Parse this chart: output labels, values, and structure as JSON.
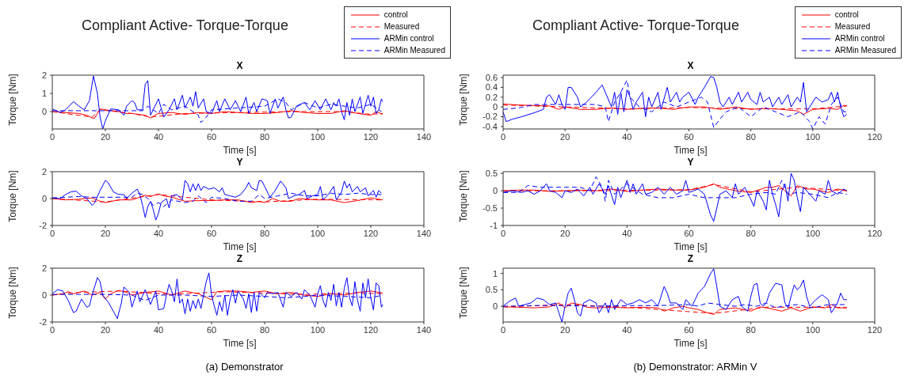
{
  "chart_data": [
    {
      "type": "line",
      "title": "Compliant Active- Torque-Torque",
      "subtitle": "X",
      "xlabel": "Time [s]",
      "ylabel": "Torque [Nm]",
      "xlim": [
        0,
        140
      ],
      "xticks": [
        0,
        20,
        40,
        60,
        80,
        100,
        120,
        140
      ],
      "ylim": [
        -0.95,
        2
      ],
      "yticks": [
        0,
        1,
        2
      ],
      "legend": "top right",
      "series": [
        {
          "name": "control",
          "color": "#ff0000",
          "line_style": "solid",
          "x": [
            0,
            5,
            10,
            13,
            15,
            16,
            18,
            20,
            25,
            28,
            30,
            35,
            37,
            40,
            45,
            50,
            55,
            60,
            65,
            70,
            75,
            80,
            85,
            90,
            95,
            100,
            105,
            110,
            115,
            120,
            122,
            124.5
          ],
          "values": [
            0,
            -0.05,
            -0.1,
            -0.2,
            -0.35,
            -0.35,
            0.15,
            0.1,
            0,
            -0.1,
            -0.1,
            -0.2,
            -0.35,
            -0.1,
            -0.05,
            -0.15,
            -0.05,
            -0.1,
            0,
            -0.05,
            -0.1,
            -0.1,
            -0.05,
            0.05,
            -0.05,
            -0.1,
            -0.1,
            0.05,
            -0.1,
            -0.2,
            0,
            -0.15
          ]
        },
        {
          "name": "Measured",
          "color": "#ff0000",
          "line_style": "dashed",
          "x": [
            0,
            15,
            18,
            30,
            37,
            50,
            70,
            90,
            110,
            120,
            124.5
          ],
          "values": [
            0,
            -0.3,
            0.1,
            -0.1,
            -0.3,
            -0.1,
            -0.05,
            0,
            0,
            -0.15,
            -0.1
          ]
        },
        {
          "name": "ARMin control",
          "color": "#0000ff",
          "line_style": "solid",
          "x": [
            0,
            3,
            5,
            8,
            10,
            12,
            14,
            15.5,
            17,
            18,
            19,
            20,
            22,
            25,
            27,
            28,
            30,
            31,
            32,
            34,
            35,
            36,
            37,
            38,
            40,
            42,
            44,
            46,
            47,
            49,
            50,
            52,
            53,
            54,
            55,
            57,
            58,
            60,
            62,
            63,
            65,
            67,
            69,
            71,
            73,
            74,
            76,
            77,
            79,
            81,
            82,
            84,
            85,
            87,
            88,
            89,
            90,
            92,
            95,
            97,
            99,
            101,
            103,
            105,
            106,
            107,
            108,
            109,
            110,
            111,
            112,
            113,
            114,
            116,
            117,
            119,
            120,
            121,
            122,
            123,
            124,
            124.5
          ],
          "values": [
            0.15,
            -0.05,
            0.1,
            0.55,
            0.3,
            0.1,
            0.6,
            1.95,
            1,
            -0.3,
            -0.95,
            -0.5,
            0.15,
            0.1,
            -0.2,
            0.3,
            0.6,
            0.5,
            0.1,
            0.1,
            1.5,
            1.7,
            -0.2,
            0.1,
            0.7,
            -0.3,
            0.1,
            0.7,
            0.1,
            0.9,
            0.2,
            0.8,
            0.3,
            1.1,
            0.2,
            0.7,
            0,
            -0.1,
            0.6,
            0,
            0.7,
            0.1,
            0.6,
            0,
            0.8,
            -0.1,
            0.5,
            0,
            0.7,
            0.6,
            -0.1,
            0.7,
            0.2,
            0.8,
            0.1,
            -0.35,
            -0.3,
            0.3,
            0.5,
            0.1,
            0.6,
            0.1,
            0.7,
            0.1,
            0.5,
            0.3,
            0.7,
            0,
            -0.45,
            0.5,
            -0.2,
            0.7,
            0,
            0.8,
            -0.1,
            0.9,
            0.3,
            0.8,
            -0.1,
            0.1,
            0.7,
            0.55
          ]
        },
        {
          "name": "ARMin Measured",
          "color": "#0000ff",
          "line_style": "dashed",
          "x": [
            0,
            10,
            30,
            34,
            36,
            38,
            40,
            42,
            45,
            50,
            55,
            56,
            58,
            60,
            70,
            80,
            85,
            88,
            90,
            95,
            100,
            105,
            110,
            115,
            120,
            124
          ],
          "values": [
            0.05,
            0.05,
            0.05,
            0.05,
            0.3,
            0.1,
            -0.1,
            0.4,
            0.1,
            0.3,
            -0.2,
            -0.6,
            -0.3,
            0.1,
            0.2,
            0.3,
            0.7,
            0.5,
            0.1,
            0.5,
            0.2,
            0.4,
            0.3,
            0.2,
            0.4,
            0
          ]
        }
      ]
    },
    {
      "type": "line",
      "subtitle": "Y",
      "xlabel": "Time [s]",
      "ylabel": "Torque [Nm]",
      "xlim": [
        0,
        140
      ],
      "xticks": [
        0,
        20,
        40,
        60,
        80,
        100,
        120,
        140
      ],
      "ylim": [
        -2,
        2
      ],
      "yticks": [
        -2,
        0,
        2
      ],
      "series": [
        {
          "color": "#ff0000",
          "line_style": "solid",
          "x": [
            0,
            5,
            10,
            15,
            18,
            20,
            25,
            30,
            35,
            37,
            40,
            42,
            45,
            50,
            55,
            60,
            65,
            70,
            75,
            78,
            80,
            83,
            86,
            90,
            93,
            100,
            105,
            110,
            115,
            120,
            124.5
          ],
          "values": [
            0,
            -0.1,
            -0.05,
            0.05,
            -0.2,
            -0.3,
            -0.1,
            -0.1,
            0.25,
            0.15,
            0.35,
            0.2,
            0.1,
            -0.2,
            -0.15,
            -0.15,
            -0.1,
            -0.1,
            -0.3,
            -0.2,
            -0.3,
            0,
            -0.2,
            -0.2,
            0,
            -0.1,
            -0.1,
            -0.3,
            -0.15,
            0.05,
            -0.1
          ]
        },
        {
          "color": "#ff0000",
          "line_style": "dashed",
          "x": [
            0,
            20,
            40,
            60,
            80,
            100,
            124.5
          ],
          "values": [
            0,
            -0.25,
            0.3,
            -0.1,
            -0.25,
            -0.05,
            -0.1
          ]
        },
        {
          "color": "#0000ff",
          "line_style": "solid",
          "x": [
            0,
            3,
            5,
            7,
            9,
            11,
            13,
            15,
            16,
            18,
            20,
            21,
            23,
            25,
            27,
            28,
            30,
            32,
            33,
            34,
            35,
            36,
            37,
            38,
            39,
            40,
            41,
            43,
            44,
            45,
            47,
            49,
            50,
            51,
            52,
            53,
            54,
            55,
            56,
            57,
            59,
            61,
            63,
            64,
            65,
            67,
            69,
            71,
            73,
            74,
            75,
            77,
            78,
            79,
            80,
            82,
            84,
            86,
            88,
            89,
            91,
            93,
            95,
            96,
            98,
            100,
            101,
            102,
            104,
            106,
            107,
            109,
            110,
            111,
            112,
            113,
            115,
            116,
            118,
            119,
            121,
            122,
            123,
            124
          ],
          "values": [
            0.05,
            0,
            0.3,
            0.5,
            0.55,
            0.2,
            0,
            -0.5,
            -0.3,
            0.6,
            1.35,
            1.2,
            0.5,
            0.3,
            0.3,
            0,
            0.4,
            0.7,
            0.3,
            -0.5,
            -1.4,
            -0.6,
            -0.2,
            -0.8,
            -1.6,
            -1.1,
            -0.3,
            0,
            -0.7,
            0.2,
            0.3,
            -0.1,
            1.35,
            1.1,
            0.5,
            1.1,
            0.6,
            1.1,
            0.6,
            0.9,
            0.7,
            0.8,
            0.5,
            0.8,
            0.3,
            0.2,
            0.1,
            0.3,
            0.8,
            1.2,
            0.8,
            0.6,
            1.35,
            1.3,
            0.9,
            0.1,
            0.6,
            1.3,
            0.8,
            0,
            0.2,
            0.3,
            0.6,
            0,
            0.2,
            0.3,
            0.9,
            -0.1,
            0.3,
            0.9,
            -0.1,
            0.5,
            1.3,
            0.8,
            1.1,
            0.5,
            0.9,
            0.5,
            0.8,
            0.2,
            0.6,
            0.1,
            0.6,
            0.4
          ]
        },
        {
          "color": "#0000ff",
          "line_style": "dashed",
          "x": [
            0,
            10,
            15,
            20,
            30,
            32,
            34,
            36,
            38,
            40,
            42,
            45,
            50,
            53,
            55,
            58,
            60,
            65,
            70,
            75,
            78,
            80,
            85,
            90,
            95,
            100,
            105,
            110,
            115,
            120,
            124
          ],
          "values": [
            0.05,
            0.15,
            0.1,
            0.1,
            0.1,
            0.4,
            0.3,
            0,
            -0.5,
            -0.3,
            -0.6,
            -0.1,
            -0.3,
            -0.2,
            0.2,
            -0.3,
            0.1,
            0,
            -0.2,
            -0.2,
            0.3,
            0,
            0.2,
            0.4,
            0.2,
            0.2,
            0.4,
            0.3,
            0.4,
            0.3,
            0.3
          ]
        }
      ]
    },
    {
      "type": "line",
      "subtitle": "Z",
      "xlabel": "Time [s]",
      "ylabel": "Torque [Nm]",
      "xlim": [
        0,
        140
      ],
      "xticks": [
        0,
        20,
        40,
        60,
        80,
        100,
        120,
        140
      ],
      "ylim": [
        -2,
        2
      ],
      "yticks": [
        -2,
        0,
        2
      ],
      "annotations": [
        "(a) Demonstrator"
      ],
      "series": [
        {
          "color": "#ff0000",
          "line_style": "solid",
          "x": [
            0,
            4,
            6,
            8,
            12,
            15,
            18,
            20,
            22,
            25,
            28,
            30,
            35,
            40,
            45,
            50,
            55,
            60,
            62,
            65,
            70,
            75,
            80,
            85,
            90,
            95,
            100,
            105,
            110,
            115,
            120,
            124.5
          ],
          "values": [
            0,
            0.1,
            0.25,
            0.1,
            0.3,
            0,
            0.2,
            -0.3,
            0.1,
            0.35,
            0.2,
            0,
            0.2,
            0.3,
            0,
            0.3,
            0.1,
            -0.35,
            0.25,
            0.3,
            0.3,
            0.2,
            0.3,
            0.1,
            0.2,
            0,
            -0.1,
            0.1,
            0,
            0.2,
            0.3,
            0.15
          ]
        },
        {
          "color": "#ff0000",
          "line_style": "dashed",
          "x": [
            0,
            10,
            25,
            45,
            65,
            95,
            115,
            124.5
          ],
          "values": [
            0,
            0.2,
            0.3,
            0.05,
            0.25,
            0.05,
            0.15,
            0.1
          ]
        },
        {
          "color": "#0000ff",
          "line_style": "solid",
          "x": [
            0,
            2,
            4,
            6,
            8,
            9,
            11,
            13,
            14,
            15,
            17,
            18,
            19,
            21,
            23,
            24.5,
            26,
            27,
            29,
            30,
            32,
            33,
            35,
            37,
            39,
            40,
            42,
            43,
            44,
            45,
            46,
            47,
            48,
            49,
            50,
            51,
            52,
            53,
            54,
            55,
            56,
            58,
            59,
            60,
            61,
            62,
            63,
            64,
            65,
            66,
            67,
            68,
            69,
            70,
            72,
            73,
            74,
            75,
            76,
            77,
            78,
            80,
            81,
            83,
            85,
            87,
            88,
            90,
            92,
            94,
            95,
            97,
            99,
            100,
            101,
            102,
            103,
            104,
            105,
            106,
            107,
            108,
            109,
            110,
            111,
            112,
            113,
            114,
            115,
            116,
            117,
            118,
            119,
            120,
            121,
            122,
            123,
            124,
            124.5
          ],
          "values": [
            0.1,
            0.4,
            0.3,
            -0.4,
            -1.3,
            -1.2,
            -0.3,
            -0.9,
            -0.8,
            0,
            1.3,
            1,
            0,
            -0.5,
            -1.2,
            -1.75,
            -0.6,
            0.6,
            0.2,
            -0.9,
            0.3,
            -0.5,
            0.4,
            -0.7,
            0.3,
            -1.1,
            -1,
            0,
            0.8,
            0.3,
            -0.5,
            1.2,
            -0.6,
            -0.3,
            -1.4,
            -0.3,
            -1.2,
            -0.4,
            -1,
            -0.3,
            -1,
            1,
            1.65,
            0,
            -0.8,
            -1.5,
            -0.5,
            -1.2,
            0,
            -1.5,
            -0.3,
            0.4,
            -0.6,
            0.3,
            -0.3,
            -1,
            0.1,
            -1.3,
            0.2,
            -1.2,
            0.2,
            -0.2,
            0.2,
            0.1,
            0.2,
            -0.9,
            0.2,
            -0.1,
            0.2,
            -0.3,
            0.4,
            0,
            -0.9,
            0.1,
            0.7,
            -0.4,
            -0.9,
            0.2,
            -0.4,
            0.8,
            -0.8,
            0.2,
            -0.9,
            0.5,
            1.3,
            -0.2,
            -0.8,
            1,
            -0.4,
            -1.2,
            0.9,
            -0.2,
            1.2,
            -0.2,
            -1.1,
            0.9,
            0.7,
            -0.9,
            -0.7
          ]
        },
        {
          "color": "#0000ff",
          "line_style": "dashed",
          "x": [
            0,
            10,
            20,
            30,
            35,
            40,
            50,
            60,
            70,
            80,
            88,
            95,
            100,
            110,
            120,
            124.5
          ],
          "values": [
            0.05,
            0.05,
            0.05,
            0,
            -0.4,
            0,
            0,
            -0.1,
            0,
            -0.1,
            -0.2,
            -0.1,
            0,
            -0.1,
            -0.2,
            0
          ]
        }
      ]
    },
    {
      "type": "line",
      "title": "Compliant Active- Torque-Torque",
      "subtitle": "X",
      "xlabel": "Time [s]",
      "ylabel": "Torque [Nm]",
      "xlim": [
        0,
        120
      ],
      "xticks": [
        0,
        20,
        40,
        60,
        80,
        100,
        120
      ],
      "ylim": [
        -0.45,
        0.65
      ],
      "yticks": [
        -0.4,
        -0.2,
        0,
        0.2,
        0.4,
        0.6
      ],
      "legend": "top right",
      "series": [
        {
          "name": "control",
          "color": "#ff0000",
          "line_style": "solid",
          "x": [
            0,
            5,
            10,
            15,
            18,
            20,
            25,
            30,
            35,
            40,
            45,
            50,
            55,
            60,
            65,
            70,
            75,
            80,
            85,
            90,
            95,
            97,
            100,
            105,
            108,
            110,
            111
          ],
          "values": [
            0.06,
            0.04,
            0.03,
            0.02,
            -0.05,
            0,
            -0.05,
            -0.05,
            -0.02,
            -0.05,
            -0.03,
            -0.02,
            -0.05,
            0,
            0,
            -0.05,
            0,
            -0.05,
            -0.03,
            -0.05,
            -0.08,
            -0.15,
            -0.05,
            -0.03,
            -0.05,
            0.03,
            0.03
          ]
        },
        {
          "name": "Measured",
          "color": "#ff0000",
          "line_style": "dashed",
          "x": [
            0,
            20,
            40,
            60,
            80,
            100,
            111
          ],
          "values": [
            0.04,
            0,
            -0.04,
            -0.01,
            -0.04,
            -0.04,
            0.02
          ]
        },
        {
          "name": "ARMin control",
          "color": "#0000ff",
          "line_style": "solid",
          "x": [
            0,
            1,
            3,
            6,
            10,
            13,
            14,
            15,
            17,
            18,
            19,
            20,
            21,
            22,
            24,
            25,
            27,
            30,
            32,
            33,
            35,
            36,
            37,
            38,
            39,
            40,
            41,
            42,
            43,
            45,
            46,
            47,
            48,
            50,
            51,
            53,
            54,
            56,
            57,
            58,
            60,
            62,
            63,
            64,
            65,
            67,
            68,
            69,
            70,
            71,
            73,
            74,
            76,
            77,
            79,
            80,
            82,
            83,
            84,
            86,
            87,
            89,
            90,
            92,
            93,
            95,
            96,
            97,
            98,
            99,
            101,
            103,
            105,
            106,
            107,
            108,
            109,
            110,
            111
          ],
          "values": [
            -0.1,
            -0.3,
            -0.25,
            -0.2,
            -0.12,
            -0.05,
            0.2,
            0.25,
            0.05,
            0.25,
            0.05,
            -0.05,
            0.4,
            0.4,
            0.2,
            0,
            0.1,
            0.3,
            0.45,
            0.3,
            0,
            0.3,
            -0.15,
            0.3,
            -0.1,
            0.35,
            0.2,
            -0.05,
            0.1,
            0.3,
            -0.2,
            0.2,
            0,
            0.3,
            -0.05,
            0.4,
            0.1,
            0.3,
            0.1,
            0.2,
            0.3,
            0.05,
            0.2,
            0.3,
            0.4,
            0.62,
            0.6,
            0.4,
            0.1,
            0,
            0.2,
            0.05,
            0.3,
            0.1,
            0.3,
            0.15,
            0.05,
            0.3,
            0.1,
            0.2,
            0,
            0.2,
            0.05,
            0.25,
            0,
            0.2,
            0.1,
            0.5,
            -0.1,
            0,
            0.2,
            0.1,
            0.15,
            0.3,
            0.1,
            0.3,
            0,
            -0.2,
            -0.15
          ]
        },
        {
          "name": "ARMin Measured",
          "color": "#0000ff",
          "line_style": "dashed",
          "x": [
            0,
            5,
            10,
            13,
            20,
            25,
            30,
            33,
            34,
            36,
            38,
            40,
            41,
            44,
            48,
            52,
            56,
            60,
            64,
            66,
            68,
            70,
            72,
            76,
            80,
            84,
            88,
            92,
            96,
            99,
            100,
            102,
            104,
            106,
            108,
            110,
            111
          ],
          "values": [
            -0.05,
            -0.02,
            0.05,
            0.05,
            0.05,
            0.05,
            0.05,
            0,
            -0.3,
            0.1,
            0.3,
            0.55,
            0.2,
            0,
            -0.1,
            0.1,
            0,
            0.1,
            0.2,
            0.1,
            -0.42,
            -0.25,
            -0.1,
            0,
            -0.2,
            0,
            -0.1,
            -0.2,
            -0.1,
            -0.3,
            -0.45,
            -0.2,
            -0.35,
            0.05,
            0.2,
            -0.1,
            -0.1
          ]
        }
      ]
    },
    {
      "type": "line",
      "subtitle": "Y",
      "xlabel": "Time [s]",
      "ylabel": "Torque [Nm]",
      "xlim": [
        0,
        120
      ],
      "xticks": [
        0,
        20,
        40,
        60,
        80,
        100,
        120
      ],
      "ylim": [
        -1,
        0.55
      ],
      "yticks": [
        -1,
        -0.5,
        0,
        0.5
      ],
      "series": [
        {
          "color": "#ff0000",
          "line_style": "solid",
          "x": [
            0,
            5,
            10,
            15,
            20,
            25,
            30,
            35,
            40,
            45,
            50,
            55,
            60,
            65,
            68,
            70,
            75,
            80,
            85,
            87,
            89,
            91,
            93,
            95,
            98,
            100,
            105,
            108,
            111
          ],
          "values": [
            0,
            0.02,
            0.02,
            -0.02,
            0,
            0.02,
            0,
            0.05,
            -0.02,
            0.02,
            0.05,
            0.02,
            0.02,
            0.1,
            0.2,
            0.1,
            0,
            -0.05,
            0.1,
            0.1,
            0.15,
            0,
            -0.15,
            0.15,
            0.05,
            0.05,
            -0.05,
            0.05,
            0
          ]
        },
        {
          "color": "#ff0000",
          "line_style": "dashed",
          "x": [
            0,
            30,
            60,
            68,
            80,
            95,
            111
          ],
          "values": [
            0,
            0,
            0.03,
            0.18,
            -0.03,
            0.1,
            0
          ]
        },
        {
          "color": "#0000ff",
          "line_style": "solid",
          "x": [
            0,
            3,
            6,
            8,
            10,
            12,
            14,
            15,
            17,
            19,
            20,
            22,
            24,
            26,
            28,
            29,
            31,
            33,
            34,
            36,
            37,
            38,
            40,
            41,
            42,
            43,
            45,
            46,
            48,
            50,
            52,
            54,
            56,
            58,
            59,
            60,
            63,
            65,
            66,
            67,
            68,
            69,
            70,
            72,
            74,
            75,
            76,
            78,
            80,
            81,
            82,
            84,
            85,
            86,
            87,
            88,
            89,
            90,
            91,
            92,
            93,
            94,
            95,
            96,
            97,
            99,
            101,
            102,
            104,
            105,
            106,
            108,
            110,
            111
          ],
          "values": [
            -0.05,
            0,
            -0.05,
            0,
            -0.1,
            0,
            0.2,
            0,
            -0.05,
            -0.2,
            0,
            -0.05,
            0.05,
            -0.15,
            0.1,
            -0.1,
            0.2,
            -0.1,
            0.15,
            -0.4,
            0.1,
            -0.2,
            0.3,
            -0.05,
            0.2,
            -0.1,
            0.2,
            -0.1,
            -0.05,
            0.1,
            -0.1,
            0.1,
            -0.1,
            0,
            0.3,
            -0.05,
            0.05,
            -0.1,
            -0.4,
            -0.7,
            -0.88,
            -0.5,
            -0.1,
            0,
            -0.2,
            0.2,
            -0.1,
            0.1,
            -0.25,
            -0.45,
            0,
            -0.3,
            -0.55,
            0.3,
            -0.1,
            -0.4,
            -0.75,
            0,
            0.2,
            -0.3,
            0.5,
            0.3,
            -0.2,
            -0.6,
            0.1,
            -0.1,
            -0.3,
            0,
            -0.1,
            0.3,
            0,
            -0.1,
            0.05,
            0
          ]
        },
        {
          "color": "#0000ff",
          "line_style": "dashed",
          "x": [
            0,
            5,
            8,
            12,
            20,
            25,
            28,
            30,
            32,
            33,
            34,
            36,
            40,
            45,
            50,
            55,
            60,
            65,
            70,
            75,
            80,
            85,
            88,
            90,
            92,
            95,
            100,
            105,
            108,
            111
          ],
          "values": [
            -0.05,
            -0.05,
            0.15,
            0.1,
            0.1,
            0.1,
            0,
            0.4,
            0.1,
            -0.3,
            0.3,
            -0.1,
            0.2,
            -0.1,
            -0.2,
            -0.2,
            -0.1,
            -0.2,
            -0.2,
            -0.2,
            -0.1,
            -0.05,
            -0.1,
            0.3,
            -0.1,
            -0.05,
            -0.1,
            -0.2,
            -0.05,
            -0.1
          ]
        }
      ]
    },
    {
      "type": "line",
      "subtitle": "Z",
      "xlabel": "Time [s]",
      "ylabel": "Torque [Nm]",
      "xlim": [
        0,
        120
      ],
      "xticks": [
        0,
        20,
        40,
        60,
        80,
        100,
        120
      ],
      "ylim": [
        -0.48,
        1.16
      ],
      "yticks": [
        0,
        0.5,
        1
      ],
      "annotations": [
        "(b) Demonstrator: ARMin V"
      ],
      "series": [
        {
          "color": "#ff0000",
          "line_style": "solid",
          "x": [
            0,
            5,
            10,
            15,
            18,
            20,
            22,
            25,
            27,
            30,
            35,
            40,
            45,
            50,
            52,
            55,
            58,
            60,
            63,
            66,
            68,
            70,
            75,
            80,
            83,
            85,
            90,
            93,
            96,
            100,
            104,
            106,
            108,
            111
          ],
          "values": [
            -0.02,
            -0.03,
            -0.05,
            -0.02,
            0.1,
            -0.05,
            0.1,
            0.05,
            -0.03,
            -0.05,
            -0.03,
            -0.05,
            -0.03,
            -0.05,
            -0.15,
            -0.05,
            0,
            -0.05,
            -0.1,
            -0.2,
            -0.25,
            -0.1,
            -0.05,
            -0.15,
            -0.02,
            -0.05,
            -0.15,
            -0.05,
            -0.15,
            -0.02,
            -0.05,
            0.05,
            -0.05,
            -0.05
          ]
        },
        {
          "color": "#ff0000",
          "line_style": "dashed",
          "x": [
            0,
            20,
            40,
            68,
            85,
            100,
            111
          ],
          "values": [
            -0.02,
            0.05,
            -0.03,
            -0.22,
            -0.03,
            -0.03,
            -0.04
          ]
        },
        {
          "color": "#0000ff",
          "line_style": "solid",
          "x": [
            0,
            2,
            4,
            5,
            7,
            9,
            11,
            13,
            15,
            17,
            18,
            19,
            20,
            21,
            22,
            23,
            24,
            25,
            26,
            28,
            30,
            31,
            33,
            34,
            35,
            36,
            38,
            40,
            42,
            44,
            46,
            48,
            50,
            52,
            53,
            54,
            56,
            58,
            59,
            61,
            62,
            63,
            65,
            67,
            68,
            69,
            70,
            72,
            74,
            76,
            77,
            79,
            80,
            81,
            82,
            83,
            84,
            85,
            86,
            88,
            90,
            91,
            92,
            93,
            94,
            95,
            96,
            97,
            98,
            99,
            101,
            103,
            105,
            106,
            108,
            109,
            110,
            111
          ],
          "values": [
            0,
            0.15,
            0.25,
            0,
            0.05,
            0.1,
            0.25,
            0.2,
            0.05,
            0.1,
            -0.2,
            -0.48,
            0,
            0.4,
            0.55,
            0.2,
            -0.2,
            -0.3,
            0.1,
            0.2,
            0.1,
            -0.2,
            0.1,
            -0.2,
            0.2,
            -0.1,
            0.2,
            0.05,
            0.1,
            0.2,
            0.1,
            0.2,
            0,
            0.6,
            0.4,
            0.1,
            0.1,
            -0.1,
            0.2,
            0,
            0.2,
            0.4,
            0.6,
            1,
            1.14,
            0.6,
            0,
            -0.1,
            0.2,
            0.3,
            0,
            -0.15,
            0.3,
            0.65,
            0.7,
            0.1,
            0,
            0.1,
            0.4,
            0.7,
            0.65,
            0.1,
            -0.05,
            0.3,
            0.65,
            0.5,
            0.6,
            0.8,
            0.3,
            0,
            0.2,
            0.35,
            0.2,
            -0.2,
            0.1,
            0.4,
            0.2,
            0.2
          ]
        },
        {
          "color": "#0000ff",
          "line_style": "dashed",
          "x": [
            0,
            10,
            20,
            30,
            40,
            50,
            60,
            63,
            66,
            70,
            75,
            78,
            82,
            85,
            88,
            90,
            95,
            100,
            105,
            111
          ],
          "values": [
            0,
            0.02,
            0.02,
            0,
            0.02,
            0.02,
            0.05,
            0,
            0.1,
            0.05,
            0,
            0.05,
            0,
            0.1,
            -0.05,
            0,
            0.05,
            -0.05,
            0.05,
            0.05
          ]
        }
      ]
    }
  ]
}
